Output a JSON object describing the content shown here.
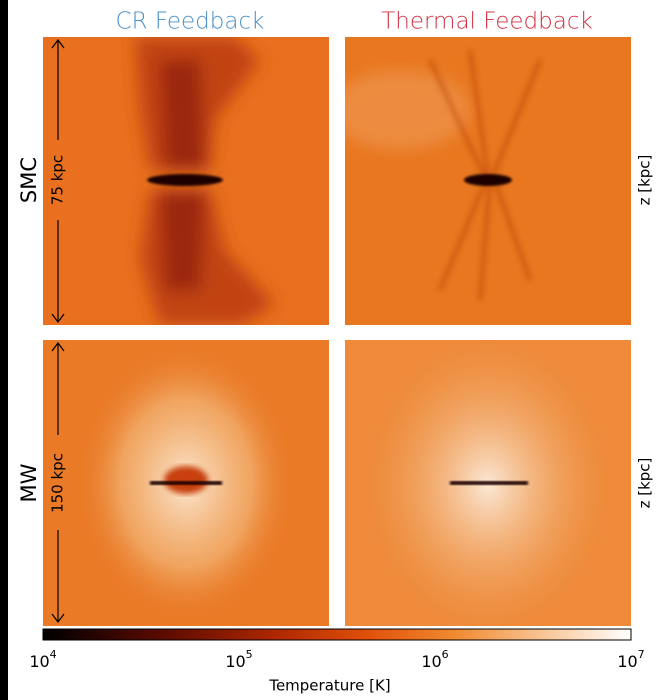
{
  "columns": [
    {
      "title": "CR Feedback"
    },
    {
      "title": "Thermal Feedback"
    }
  ],
  "rows": [
    {
      "label": "SMC",
      "scale": "75 kpc",
      "axis_label": "z [kpc]"
    },
    {
      "label": "MW",
      "scale": "150 kpc",
      "axis_label": "z [kpc]"
    }
  ],
  "colorbar": {
    "label": "Temperature [K]",
    "ticks": [
      {
        "base": "10",
        "exp": "4"
      },
      {
        "base": "10",
        "exp": "5"
      },
      {
        "base": "10",
        "exp": "6"
      },
      {
        "base": "10",
        "exp": "7"
      }
    ]
  }
}
